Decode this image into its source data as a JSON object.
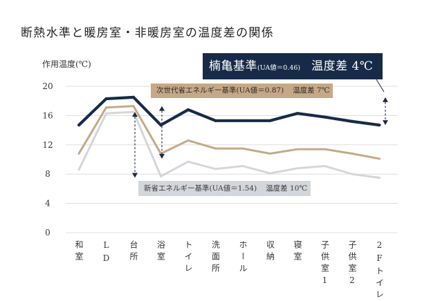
{
  "chart_data": {
    "type": "line",
    "title": "断熱水準と暖房室・非暖房室の温度差の関係",
    "xlabel": "",
    "ylabel": "作用温度(℃)",
    "ylim": [
      0,
      20
    ],
    "yticks": [
      0,
      4,
      8,
      12,
      16,
      20
    ],
    "grid": true,
    "categories": [
      "和室",
      "LD",
      "台所",
      "浴室",
      "トイレ",
      "洗面所",
      "ホール",
      "収納",
      "寝室",
      "子供室1",
      "子供室2",
      "2Fトイレ"
    ],
    "series": [
      {
        "name": "楠亀基準",
        "ua": "(UA値＝0.46)",
        "diff_label": "温度差 4℃",
        "color": "#172a47",
        "values": [
          14.7,
          18.3,
          18.5,
          14.7,
          16.8,
          15.3,
          15.3,
          15.3,
          16.3,
          15.8,
          15.2,
          14.7
        ]
      },
      {
        "name": "次世代省エネルギー基準",
        "ua": "(UA値＝0.87)",
        "diff_label": "温度差 7℃",
        "color": "#c7a886",
        "values": [
          10.8,
          17.1,
          17.3,
          10.8,
          12.6,
          11.5,
          11.5,
          10.8,
          11.4,
          11.4,
          10.8,
          10.1
        ]
      },
      {
        "name": "新省エネルギー基準",
        "ua": "(UA値＝1.54)",
        "diff_label": "温度差 10℃",
        "color": "#d3d6db",
        "values": [
          8.6,
          16.3,
          16.5,
          7.7,
          9.7,
          8.7,
          9.1,
          8.1,
          8.8,
          9.1,
          8.0,
          7.5
        ]
      }
    ]
  }
}
